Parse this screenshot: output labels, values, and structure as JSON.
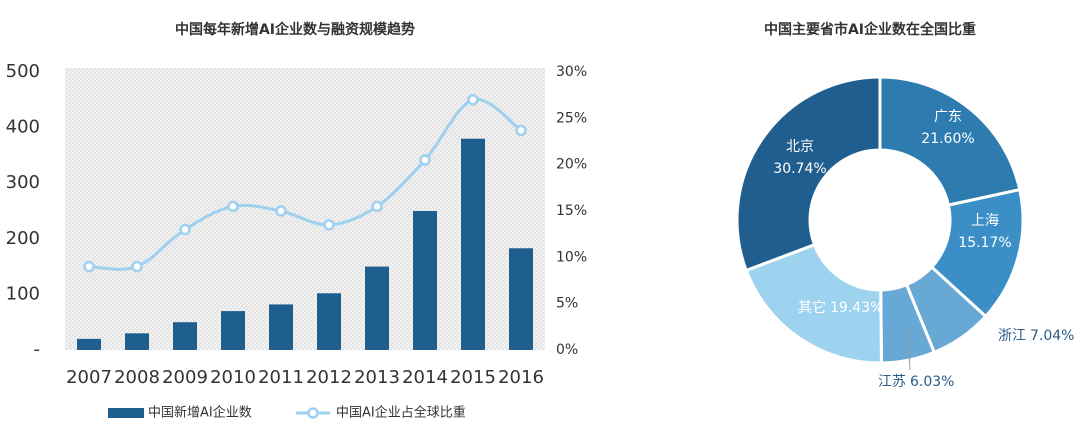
{
  "chart_data": [
    {
      "type": "bar-line",
      "title": "中国每年新增AI企业数与融资规模趋势",
      "categories": [
        "2007",
        "2008",
        "2009",
        "2010",
        "2011",
        "2012",
        "2013",
        "2014",
        "2015",
        "2016"
      ],
      "series": [
        {
          "name": "中国新增AI企业数",
          "color": "#1f5f8f",
          "values": [
            20,
            30,
            50,
            70,
            82,
            102,
            150,
            250,
            380,
            183
          ]
        },
        {
          "name": "中国AI企业占全球比重",
          "color": "#9ed0ef",
          "axis": "y2",
          "values": [
            9,
            9,
            13,
            15.5,
            15,
            13.5,
            15.5,
            20.5,
            27,
            23.7
          ]
        }
      ],
      "ylim": [
        0,
        500
      ],
      "yticks": [
        {
          "value": 0,
          "label": "-"
        },
        100,
        200,
        300,
        400,
        500
      ],
      "y2lim": [
        0,
        30
      ],
      "y2ticks": [
        {
          "value": 0,
          "label": "0%"
        },
        {
          "value": 5,
          "label": "5%"
        },
        {
          "value": 10,
          "label": "10%"
        },
        {
          "value": 15,
          "label": "15%"
        },
        {
          "value": 20,
          "label": "20%"
        },
        {
          "value": 25,
          "label": "25%"
        },
        {
          "value": 30,
          "label": "30%"
        }
      ]
    },
    {
      "type": "donut",
      "title": "中国主要省市AI企业数在全国比重",
      "categories": [
        "广东",
        "上海",
        "浙江",
        "江苏",
        "其它",
        "北京"
      ],
      "values": [
        21.6,
        15.17,
        7.04,
        6.03,
        19.43,
        30.74
      ],
      "value_labels": [
        "21.60%",
        "15.17%",
        "7.04%",
        "6.03%",
        "19.43%",
        "30.74%"
      ],
      "colors": [
        "#2e7bb0",
        "#3b8fc6",
        "#67a9d4",
        "#67a9d4",
        "#9ed3f0",
        "#1f5e8e"
      ]
    }
  ]
}
